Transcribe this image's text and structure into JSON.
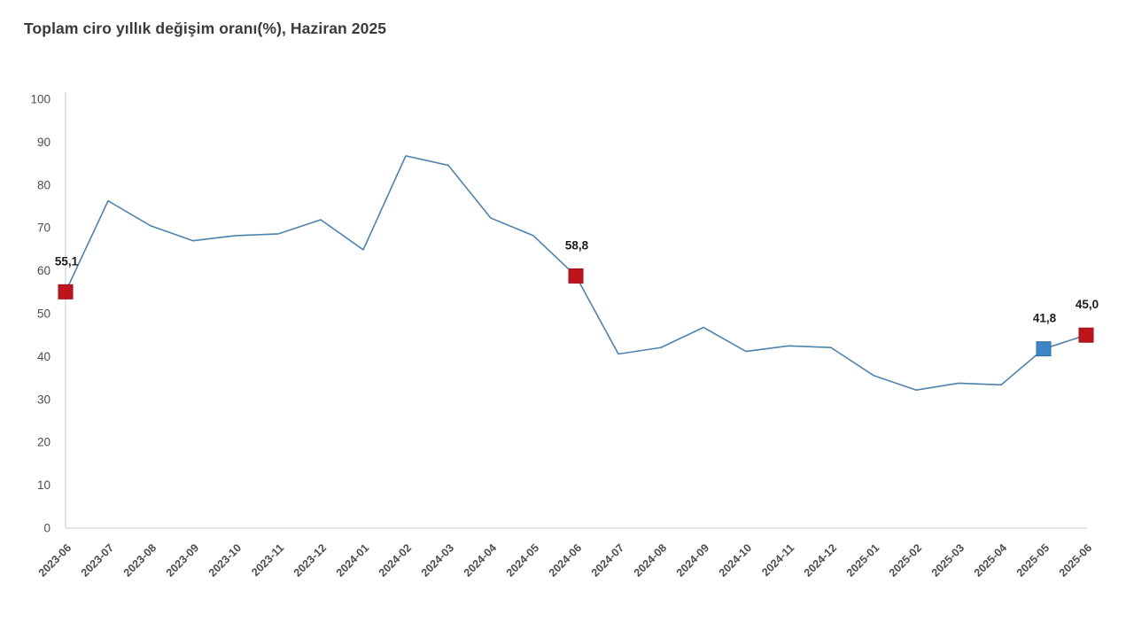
{
  "header": {
    "title": "Toplam ciro yıllık değişim oranı(%), Haziran 2025"
  },
  "chart_data": {
    "type": "line",
    "title": "Toplam ciro yıllık değişim oranı(%), Haziran 2025",
    "xlabel": "",
    "ylabel": "",
    "ylim": [
      0,
      100
    ],
    "ytick_step": 10,
    "ytick_labels": [
      "0",
      "10",
      "20",
      "30",
      "40",
      "50",
      "60",
      "70",
      "80",
      "90",
      "100"
    ],
    "grid": false,
    "legend": false,
    "categories": [
      "2023-06",
      "2023-07",
      "2023-08",
      "2023-09",
      "2023-10",
      "2023-11",
      "2023-12",
      "2024-01",
      "2024-02",
      "2024-03",
      "2024-04",
      "2024-05",
      "2024-06",
      "2024-07",
      "2024-08",
      "2024-09",
      "2024-10",
      "2024-11",
      "2024-12",
      "2025-01",
      "2025-02",
      "2025-03",
      "2025-04",
      "2025-05",
      "2025-06"
    ],
    "series": [
      {
        "name": "Toplam ciro yıllık değişim oranı (%)",
        "values": [
          55.1,
          76.3,
          70.5,
          67.0,
          68.2,
          68.6,
          71.9,
          64.9,
          86.8,
          84.6,
          72.3,
          68.2,
          58.8,
          40.6,
          42.1,
          46.8,
          41.2,
          42.5,
          42.1,
          35.6,
          32.2,
          33.8,
          33.4,
          41.8,
          45.0
        ]
      }
    ],
    "labeled_points": [
      {
        "category": "2023-06",
        "value": 55.1,
        "label": "55,1",
        "marker": "red"
      },
      {
        "category": "2024-06",
        "value": 58.8,
        "label": "58,8",
        "marker": "red"
      },
      {
        "category": "2025-05",
        "value": 41.8,
        "label": "41,8",
        "marker": "blue"
      },
      {
        "category": "2025-06",
        "value": 45.0,
        "label": "45,0",
        "marker": "red"
      }
    ],
    "colors": {
      "line": "#4d82ad",
      "marker_red_fill": "#c0141c",
      "marker_red_stroke": "#96101a",
      "marker_blue_fill": "#3d85c6",
      "marker_blue_stroke": "#2e6da4",
      "axis_line": "#d6d6d6",
      "tick_text": "#4d4d4d",
      "point_label_text": "#1c1c1c",
      "title_text": "#3a3a3a",
      "background": "#ffffff"
    }
  }
}
